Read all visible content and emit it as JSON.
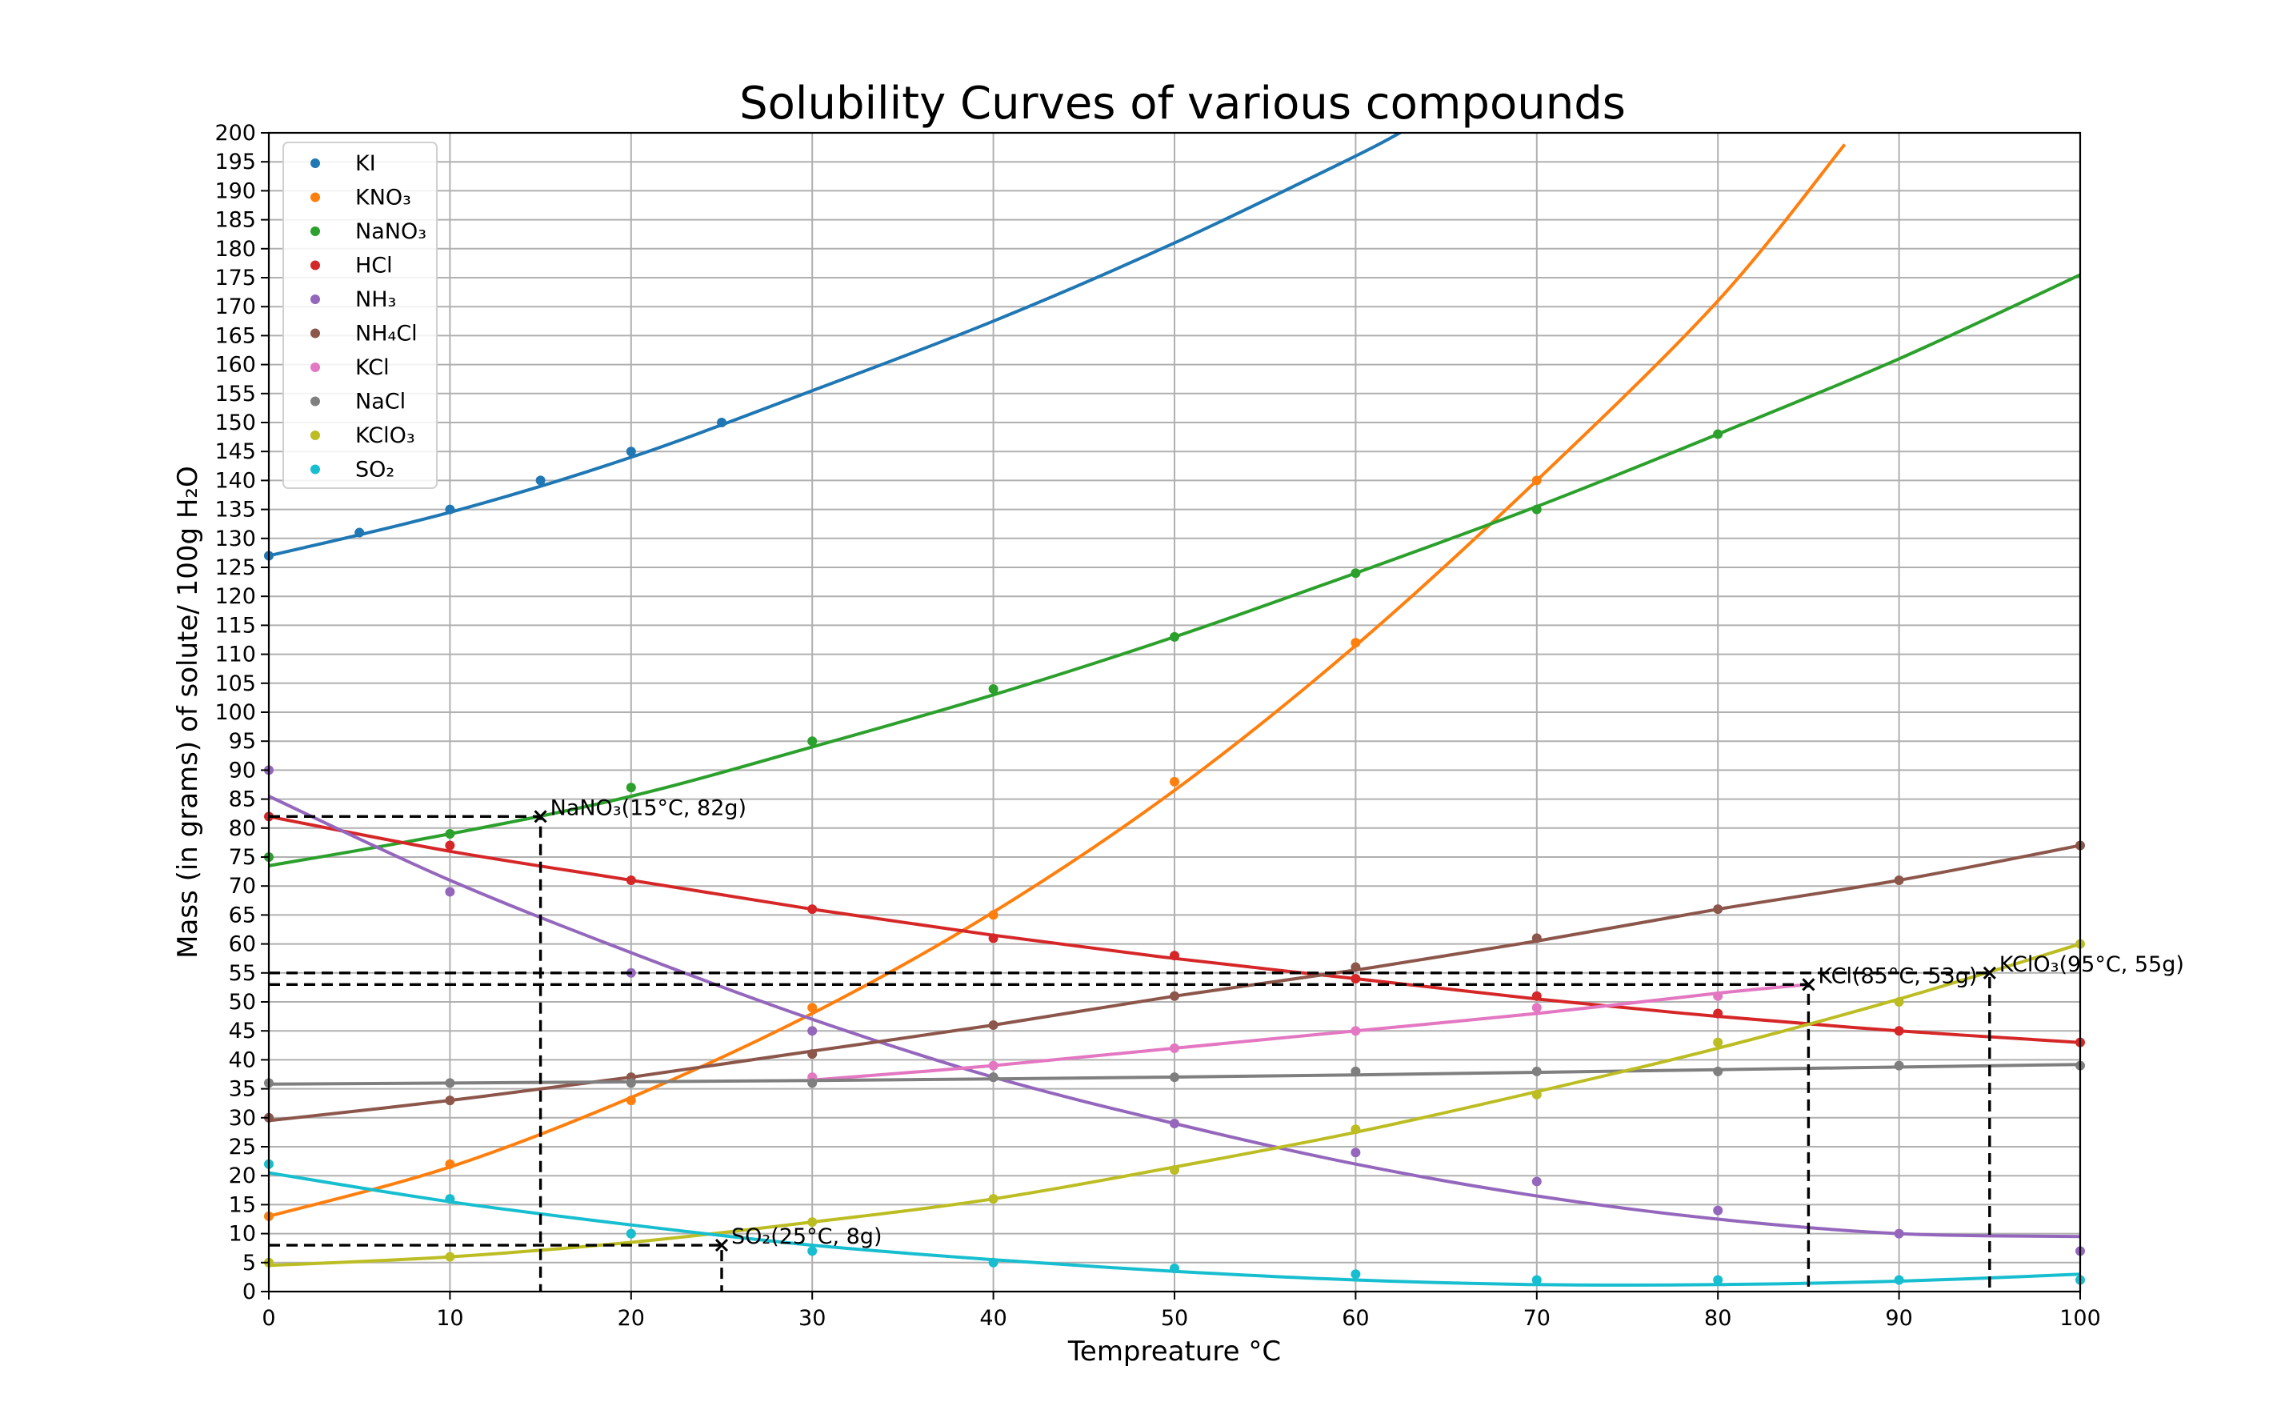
{
  "chart_data": {
    "type": "scatter",
    "title": "Solubility Curves of various compounds",
    "xlabel": "Tempreature °C",
    "ylabel": "Mass (in grams) of solute/ 100g H₂O",
    "xlim": [
      0,
      100
    ],
    "ylim": [
      0,
      200
    ],
    "xticks": [
      0,
      10,
      20,
      30,
      40,
      50,
      60,
      70,
      80,
      90,
      100
    ],
    "ytick_step": 5,
    "grid": true,
    "legend_position": "top-left",
    "series": [
      {
        "name": "KI",
        "color": "#1f77b4",
        "points": [
          [
            0,
            127
          ],
          [
            5,
            131
          ],
          [
            10,
            135
          ],
          [
            15,
            140
          ],
          [
            20,
            145
          ],
          [
            25,
            150
          ]
        ],
        "curve": [
          [
            0,
            127
          ],
          [
            10,
            134.5
          ],
          [
            20,
            144
          ],
          [
            30,
            155.5
          ],
          [
            40,
            167.5
          ],
          [
            50,
            181
          ],
          [
            60,
            196
          ],
          [
            63,
            201
          ]
        ]
      },
      {
        "name": "KNO₃",
        "color": "#ff7f0e",
        "points": [
          [
            0,
            13
          ],
          [
            10,
            22
          ],
          [
            20,
            33
          ],
          [
            30,
            49
          ],
          [
            40,
            65
          ],
          [
            50,
            88
          ],
          [
            60,
            112
          ],
          [
            70,
            140
          ]
        ],
        "curve": [
          [
            0,
            13
          ],
          [
            10,
            21.5
          ],
          [
            20,
            33.5
          ],
          [
            30,
            48
          ],
          [
            40,
            65.5
          ],
          [
            50,
            86.5
          ],
          [
            60,
            111.5
          ],
          [
            70,
            140
          ],
          [
            80,
            171
          ],
          [
            87,
            198
          ]
        ]
      },
      {
        "name": "NaNO₃",
        "color": "#2ca02c",
        "points": [
          [
            0,
            75
          ],
          [
            10,
            79
          ],
          [
            20,
            87
          ],
          [
            30,
            95
          ],
          [
            40,
            104
          ],
          [
            50,
            113
          ],
          [
            60,
            124
          ],
          [
            70,
            135
          ],
          [
            80,
            148
          ]
        ],
        "curve": [
          [
            0,
            73.5
          ],
          [
            10,
            79
          ],
          [
            20,
            85.5
          ],
          [
            30,
            94
          ],
          [
            40,
            103
          ],
          [
            50,
            113
          ],
          [
            60,
            124
          ],
          [
            70,
            135.5
          ],
          [
            80,
            148
          ],
          [
            90,
            161
          ],
          [
            100,
            175.5
          ]
        ]
      },
      {
        "name": "HCl",
        "color": "#d62728",
        "points": [
          [
            0,
            82
          ],
          [
            10,
            77
          ],
          [
            20,
            71
          ],
          [
            30,
            66
          ],
          [
            40,
            61
          ],
          [
            50,
            58
          ],
          [
            60,
            54
          ],
          [
            70,
            51
          ],
          [
            80,
            48
          ],
          [
            90,
            45
          ],
          [
            100,
            43
          ]
        ],
        "curve": [
          [
            0,
            82
          ],
          [
            10,
            76
          ],
          [
            20,
            71
          ],
          [
            30,
            66
          ],
          [
            40,
            61.5
          ],
          [
            50,
            57.5
          ],
          [
            60,
            54
          ],
          [
            70,
            50.5
          ],
          [
            80,
            47.5
          ],
          [
            90,
            45
          ],
          [
            100,
            43
          ]
        ]
      },
      {
        "name": "NH₃",
        "color": "#9467bd",
        "points": [
          [
            0,
            90
          ],
          [
            10,
            69
          ],
          [
            20,
            55
          ],
          [
            30,
            45
          ],
          [
            40,
            37
          ],
          [
            50,
            29
          ],
          [
            60,
            24
          ],
          [
            70,
            19
          ],
          [
            80,
            14
          ],
          [
            90,
            10
          ],
          [
            100,
            7
          ]
        ],
        "curve": [
          [
            0,
            85.5
          ],
          [
            10,
            71
          ],
          [
            20,
            58.5
          ],
          [
            30,
            47
          ],
          [
            40,
            37
          ],
          [
            50,
            29
          ],
          [
            60,
            22
          ],
          [
            70,
            16.5
          ],
          [
            80,
            12.5
          ],
          [
            90,
            10
          ],
          [
            100,
            9.5
          ]
        ]
      },
      {
        "name": "NH₄Cl",
        "color": "#8c564b",
        "points": [
          [
            0,
            30
          ],
          [
            10,
            33
          ],
          [
            20,
            37
          ],
          [
            30,
            41
          ],
          [
            40,
            46
          ],
          [
            50,
            51
          ],
          [
            60,
            56
          ],
          [
            70,
            61
          ],
          [
            80,
            66
          ],
          [
            90,
            71
          ],
          [
            100,
            77
          ]
        ],
        "curve": [
          [
            0,
            29.5
          ],
          [
            10,
            33
          ],
          [
            20,
            37
          ],
          [
            30,
            41.5
          ],
          [
            40,
            46
          ],
          [
            50,
            51
          ],
          [
            60,
            55.5
          ],
          [
            70,
            60.5
          ],
          [
            80,
            66
          ],
          [
            90,
            71
          ],
          [
            100,
            77
          ]
        ]
      },
      {
        "name": "KCl",
        "color": "#e377c2",
        "points": [
          [
            30,
            37
          ],
          [
            40,
            39
          ],
          [
            50,
            42
          ],
          [
            60,
            45
          ],
          [
            70,
            49
          ],
          [
            80,
            51
          ]
        ],
        "curve": [
          [
            30,
            36.5
          ],
          [
            40,
            39
          ],
          [
            50,
            42
          ],
          [
            60,
            45
          ],
          [
            70,
            48
          ],
          [
            80,
            51.5
          ],
          [
            85,
            53
          ]
        ]
      },
      {
        "name": "NaCl",
        "color": "#7f7f7f",
        "points": [
          [
            0,
            36
          ],
          [
            10,
            36
          ],
          [
            20,
            36
          ],
          [
            30,
            36
          ],
          [
            40,
            37
          ],
          [
            50,
            37
          ],
          [
            60,
            38
          ],
          [
            70,
            38
          ],
          [
            80,
            38
          ],
          [
            90,
            39
          ],
          [
            100,
            39
          ]
        ],
        "curve": [
          [
            0,
            35.8
          ],
          [
            20,
            36.2
          ],
          [
            40,
            36.7
          ],
          [
            60,
            37.4
          ],
          [
            80,
            38.3
          ],
          [
            100,
            39.2
          ]
        ]
      },
      {
        "name": "KClO₃",
        "color": "#bcbd22",
        "points": [
          [
            0,
            5
          ],
          [
            10,
            6
          ],
          [
            20,
            10
          ],
          [
            30,
            12
          ],
          [
            40,
            16
          ],
          [
            50,
            21
          ],
          [
            60,
            28
          ],
          [
            70,
            34
          ],
          [
            80,
            43
          ],
          [
            90,
            50
          ],
          [
            100,
            60
          ]
        ],
        "curve": [
          [
            0,
            4.5
          ],
          [
            10,
            6
          ],
          [
            20,
            8.5
          ],
          [
            30,
            12
          ],
          [
            40,
            16
          ],
          [
            50,
            21.5
          ],
          [
            60,
            27.5
          ],
          [
            70,
            34.5
          ],
          [
            80,
            42
          ],
          [
            90,
            50.5
          ],
          [
            100,
            60
          ]
        ]
      },
      {
        "name": "SO₂",
        "color": "#17becf",
        "points": [
          [
            0,
            22
          ],
          [
            10,
            16
          ],
          [
            20,
            10
          ],
          [
            30,
            7
          ],
          [
            40,
            5
          ],
          [
            50,
            4
          ],
          [
            60,
            3
          ],
          [
            70,
            2
          ],
          [
            80,
            2
          ],
          [
            90,
            2
          ],
          [
            100,
            2
          ]
        ],
        "curve": [
          [
            0,
            20.5
          ],
          [
            10,
            15.5
          ],
          [
            20,
            11.5
          ],
          [
            30,
            8
          ],
          [
            40,
            5.5
          ],
          [
            50,
            3.5
          ],
          [
            60,
            2
          ],
          [
            70,
            1.2
          ],
          [
            80,
            1.2
          ],
          [
            90,
            1.8
          ],
          [
            100,
            3
          ]
        ]
      }
    ],
    "annotations": [
      {
        "label": "NaNO₃(15°C, 82g)",
        "x": 15,
        "y": 82
      },
      {
        "label": "SO₂(25°C, 8g)",
        "x": 25,
        "y": 8
      },
      {
        "label": "KCl(85°C, 53g)",
        "x": 85,
        "y": 53
      },
      {
        "label": "KClO₃(95°C, 55g)",
        "x": 95,
        "y": 55
      }
    ]
  }
}
